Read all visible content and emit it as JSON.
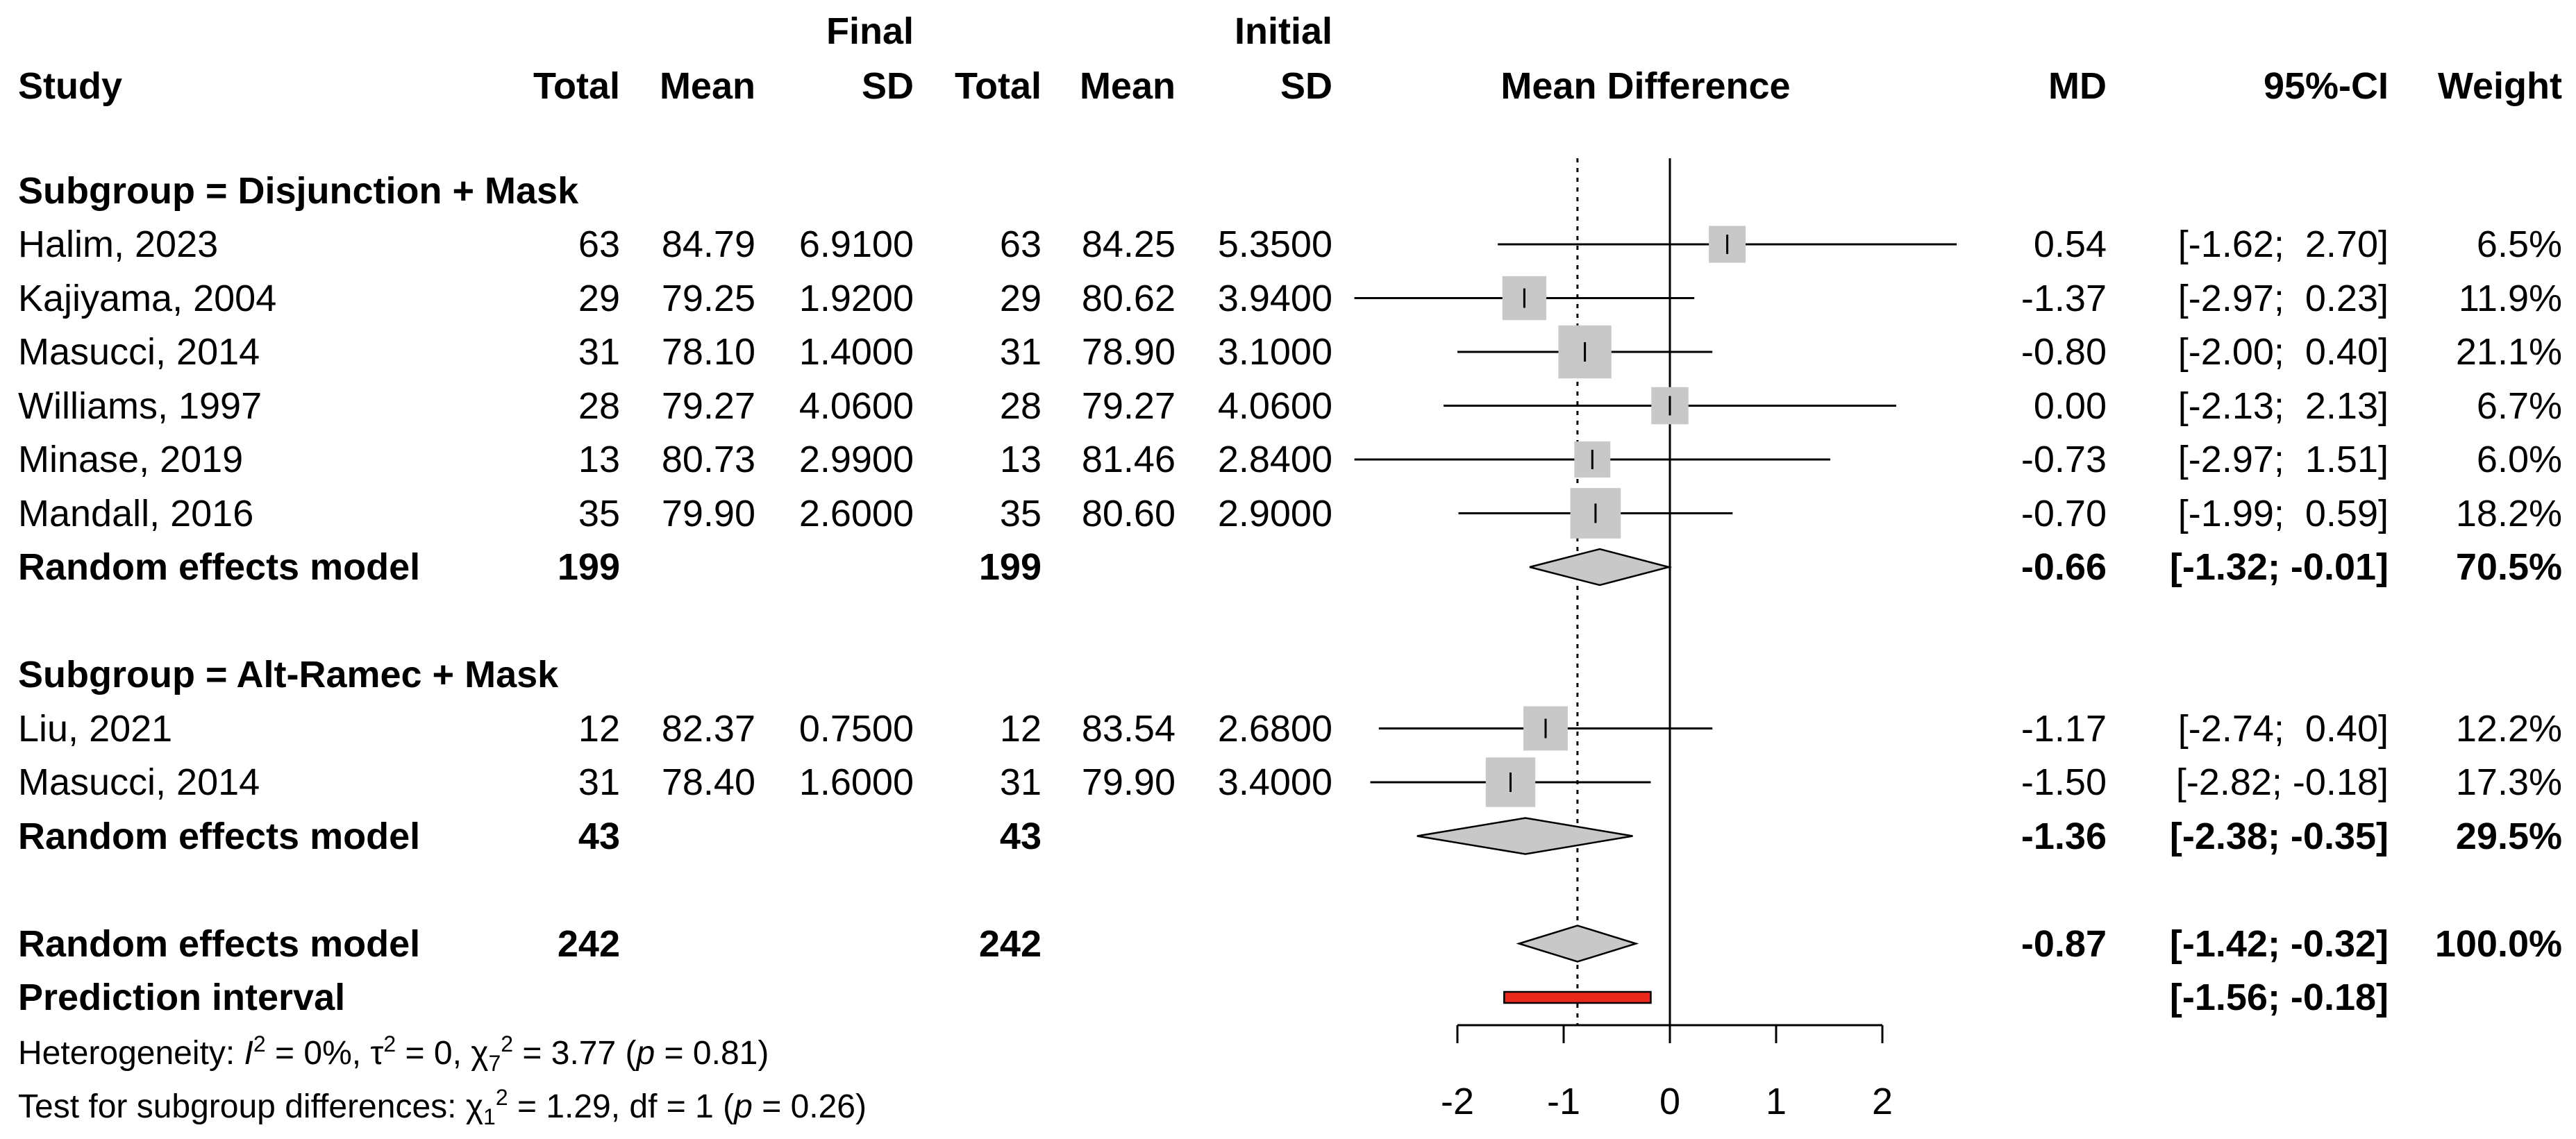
{
  "chart_data": {
    "type": "forest",
    "header": {
      "study": "Study",
      "final_group": "Final",
      "initial_group": "Initial",
      "total": "Total",
      "mean": "Mean",
      "sd": "SD",
      "effect_col": "Mean Difference",
      "md": "MD",
      "ci": "95%-CI",
      "weight": "Weight"
    },
    "xaxis": {
      "ticks": [
        -2,
        -1,
        0,
        1,
        2
      ],
      "tick_labels": [
        "-2",
        "-1",
        "0",
        "1",
        "2"
      ],
      "range": [
        -2,
        2
      ],
      "reference_line": 0
    },
    "overall_md_line": -0.87,
    "subgroups": [
      {
        "label": "Subgroup = Disjunction + Mask",
        "studies": [
          {
            "name": "Halim, 2023",
            "total_final": "63",
            "mean_final": "84.79",
            "sd_final": "6.9100",
            "total_initial": "63",
            "mean_initial": "84.25",
            "sd_initial": "5.3500",
            "md": 0.54,
            "lower": -1.62,
            "upper": 2.7,
            "md_text": "0.54",
            "ci_text": "[-1.62;  2.70]",
            "weight": 6.5,
            "weight_text": "6.5%"
          },
          {
            "name": "Kajiyama, 2004",
            "total_final": "29",
            "mean_final": "79.25",
            "sd_final": "1.9200",
            "total_initial": "29",
            "mean_initial": "80.62",
            "sd_initial": "3.9400",
            "md": -1.37,
            "lower": -2.97,
            "upper": 0.23,
            "md_text": "-1.37",
            "ci_text": "[-2.97;  0.23]",
            "weight": 11.9,
            "weight_text": "11.9%"
          },
          {
            "name": "Masucci, 2014",
            "total_final": "31",
            "mean_final": "78.10",
            "sd_final": "1.4000",
            "total_initial": "31",
            "mean_initial": "78.90",
            "sd_initial": "3.1000",
            "md": -0.8,
            "lower": -2.0,
            "upper": 0.4,
            "md_text": "-0.80",
            "ci_text": "[-2.00;  0.40]",
            "weight": 21.1,
            "weight_text": "21.1%"
          },
          {
            "name": "Williams, 1997",
            "total_final": "28",
            "mean_final": "79.27",
            "sd_final": "4.0600",
            "total_initial": "28",
            "mean_initial": "79.27",
            "sd_initial": "4.0600",
            "md": 0.0,
            "lower": -2.13,
            "upper": 2.13,
            "md_text": "0.00",
            "ci_text": "[-2.13;  2.13]",
            "weight": 6.7,
            "weight_text": "6.7%"
          },
          {
            "name": "Minase, 2019",
            "total_final": "13",
            "mean_final": "80.73",
            "sd_final": "2.9900",
            "total_initial": "13",
            "mean_initial": "81.46",
            "sd_initial": "2.8400",
            "md": -0.73,
            "lower": -2.97,
            "upper": 1.51,
            "md_text": "-0.73",
            "ci_text": "[-2.97;  1.51]",
            "weight": 6.0,
            "weight_text": "6.0%"
          },
          {
            "name": "Mandall, 2016",
            "total_final": "35",
            "mean_final": "79.90",
            "sd_final": "2.6000",
            "total_initial": "35",
            "mean_initial": "80.60",
            "sd_initial": "2.9000",
            "md": -0.7,
            "lower": -1.99,
            "upper": 0.59,
            "md_text": "-0.70",
            "ci_text": "[-1.99;  0.59]",
            "weight": 18.2,
            "weight_text": "18.2%"
          }
        ],
        "pooled": {
          "name": "Random effects model",
          "total_final": "199",
          "total_initial": "199",
          "md": -0.66,
          "lower": -1.32,
          "upper": -0.01,
          "md_text": "-0.66",
          "ci_text": "[-1.32; -0.01]",
          "weight": 70.5,
          "weight_text": "70.5%"
        }
      },
      {
        "label": "Subgroup = Alt-Ramec + Mask",
        "studies": [
          {
            "name": "Liu, 2021",
            "total_final": "12",
            "mean_final": "82.37",
            "sd_final": "0.7500",
            "total_initial": "12",
            "mean_initial": "83.54",
            "sd_initial": "2.6800",
            "md": -1.17,
            "lower": -2.74,
            "upper": 0.4,
            "md_text": "-1.17",
            "ci_text": "[-2.74;  0.40]",
            "weight": 12.2,
            "weight_text": "12.2%"
          },
          {
            "name": "Masucci, 2014",
            "total_final": "31",
            "mean_final": "78.40",
            "sd_final": "1.6000",
            "total_initial": "31",
            "mean_initial": "79.90",
            "sd_initial": "3.4000",
            "md": -1.5,
            "lower": -2.82,
            "upper": -0.18,
            "md_text": "-1.50",
            "ci_text": "[-2.82; -0.18]",
            "weight": 17.3,
            "weight_text": "17.3%"
          }
        ],
        "pooled": {
          "name": "Random effects model",
          "total_final": "43",
          "total_initial": "43",
          "md": -1.36,
          "lower": -2.38,
          "upper": -0.35,
          "md_text": "-1.36",
          "ci_text": "[-2.38; -0.35]",
          "weight": 29.5,
          "weight_text": "29.5%"
        }
      }
    ],
    "overall": {
      "name": "Random effects model",
      "total_final": "242",
      "total_initial": "242",
      "md": -0.87,
      "lower": -1.42,
      "upper": -0.32,
      "md_text": "-0.87",
      "ci_text": "[-1.42; -0.32]",
      "weight": 100.0,
      "weight_text": "100.0%"
    },
    "prediction_interval": {
      "name": "Prediction interval",
      "lower": -1.56,
      "upper": -0.18,
      "ci_text": "[-1.56; -0.18]",
      "color": "#e8291c"
    },
    "heterogeneity": {
      "prefix": "Heterogeneity: ",
      "i2": "0%",
      "tau2": "0",
      "chi2_df": "7",
      "chi2": "3.77",
      "p": "0.81"
    },
    "subgroup_test": {
      "prefix": "Test for subgroup differences: ",
      "chi2_df": "1",
      "chi2": "1.29",
      "df": "1",
      "p": "0.26"
    },
    "colors": {
      "square": "#c8c8c8",
      "diamond": "#c8c8c8",
      "prediction": "#e8291c",
      "line": "#000000"
    }
  }
}
